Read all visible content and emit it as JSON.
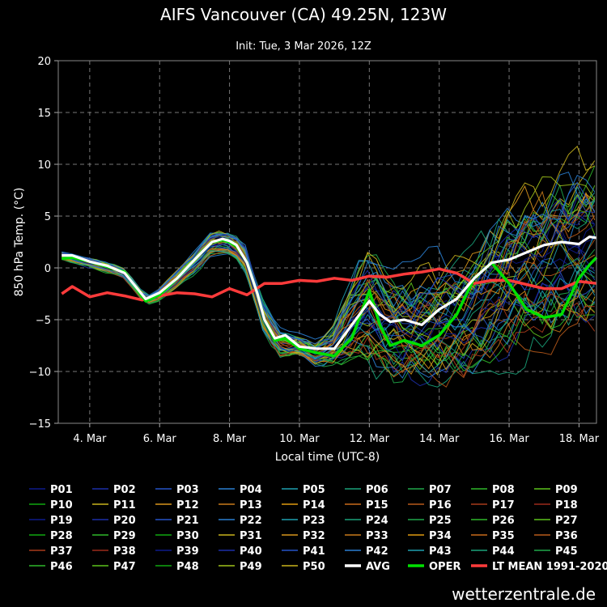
{
  "header": {
    "title": "AIFS Vancouver (CA) 49.25N, 123W",
    "subtitle": "Init: Tue, 3 Mar 2026, 12Z"
  },
  "footer": {
    "brand": "wetterzentrale.de"
  },
  "chart_data": {
    "type": "line",
    "xlabel": "Local time (UTC-8)",
    "ylabel": "850 hPa Temp. (°C)",
    "xunit": "days since 3 Mar 2026 00:00 local",
    "xlim": [
      0.1,
      15.5
    ],
    "ylim": [
      -15,
      20
    ],
    "yticks": [
      -15,
      -10,
      -5,
      0,
      5,
      10,
      15,
      20
    ],
    "xticks": [
      {
        "x": 1,
        "label": "4. Mar"
      },
      {
        "x": 3,
        "label": "6. Mar"
      },
      {
        "x": 5,
        "label": "8. Mar"
      },
      {
        "x": 7,
        "label": "10. Mar"
      },
      {
        "x": 9,
        "label": "12. Mar"
      },
      {
        "x": 11,
        "label": "14. Mar"
      },
      {
        "x": 13,
        "label": "16. Mar"
      },
      {
        "x": 15,
        "label": "18. Mar"
      }
    ],
    "grid": true,
    "legend_position": "bottom",
    "ensemble_colors": [
      "#0d1a8a",
      "#1c2fa8",
      "#2554c7",
      "#2a7fd1",
      "#1f9fb0",
      "#1aa37a",
      "#20a84a",
      "#2fb82a",
      "#5cc21c",
      "#9fc21a",
      "#c9b41c",
      "#d8961c",
      "#c97a1a",
      "#b85a1a",
      "#a83a1a"
    ],
    "ensemble_count": 50,
    "ensemble_key_times": [
      0.2,
      1,
      2,
      2.6,
      3,
      4,
      4.5,
      5,
      5.4,
      6,
      6.5,
      7,
      7.5,
      8,
      8.5,
      9,
      9.5,
      10,
      11,
      12,
      13,
      14,
      15,
      15.5
    ],
    "ensemble_mean_profile": [
      1.2,
      0.5,
      -0.5,
      -3.2,
      -2.5,
      0.5,
      2.5,
      2.5,
      1.5,
      -5,
      -7.5,
      -7.5,
      -8.5,
      -7.5,
      -5,
      -3.5,
      -5,
      -6,
      -5.5,
      -4,
      -1,
      1,
      2.5,
      3
    ],
    "ensemble_spread_profile": [
      0.3,
      0.4,
      0.4,
      0.3,
      0.5,
      0.8,
      0.8,
      0.8,
      1.0,
      1.2,
      1.0,
      0.8,
      1.0,
      1.5,
      3.5,
      4.5,
      4.5,
      4.5,
      4.5,
      4.8,
      5.5,
      6,
      6,
      6.5
    ],
    "series": [
      {
        "name": "AVG",
        "color": "#ffffff",
        "x": [
          0.2,
          0.5,
          1,
          1.5,
          2,
          2.6,
          3,
          3.5,
          4,
          4.5,
          4.8,
          5,
          5.2,
          5.5,
          5.8,
          6,
          6.3,
          6.6,
          7,
          7.5,
          8,
          8.5,
          9,
          9.3,
          9.6,
          10,
          10.5,
          11,
          11.5,
          12,
          12.5,
          13,
          13.5,
          14,
          14.5,
          15,
          15.3,
          15.5
        ],
        "y": [
          1.2,
          1.2,
          0.6,
          0.2,
          -0.5,
          -3.0,
          -2.4,
          -1.0,
          0.8,
          2.5,
          2.8,
          2.6,
          2.2,
          0.5,
          -2.5,
          -5,
          -6.8,
          -6.5,
          -7.6,
          -7.8,
          -7.8,
          -5.5,
          -3.2,
          -4.5,
          -5.2,
          -5.0,
          -5.5,
          -4.0,
          -3.0,
          -1.0,
          0.5,
          0.8,
          1.5,
          2.2,
          2.5,
          2.3,
          3.0,
          2.9
        ]
      },
      {
        "name": "OPER",
        "color": "#00e000",
        "x": [
          0.2,
          0.5,
          1,
          1.5,
          2,
          2.6,
          3,
          3.5,
          4,
          4.5,
          4.8,
          5,
          5.2,
          5.5,
          5.8,
          6,
          6.3,
          6.6,
          7,
          7.5,
          8,
          8.5,
          9,
          9.3,
          9.6,
          10,
          10.5,
          11,
          11.5,
          12,
          12.5,
          13,
          13.5,
          14,
          14.5,
          15,
          15.3,
          15.5
        ],
        "y": [
          0.9,
          1.0,
          0.6,
          0.1,
          -0.4,
          -3.2,
          -2.6,
          -1.0,
          0.8,
          2.5,
          2.7,
          2.5,
          2.1,
          0.5,
          -2.5,
          -5,
          -7.0,
          -6.8,
          -7.8,
          -8.2,
          -8.5,
          -6.8,
          -2.2,
          -5.5,
          -7.5,
          -7.0,
          -7.5,
          -6.5,
          -4.5,
          -1.0,
          0.5,
          -1.5,
          -4.0,
          -4.8,
          -4.5,
          -1.0,
          0.3,
          1.0
        ]
      },
      {
        "name": "LT MEAN 1991-2020",
        "color": "#ff3b3b",
        "x": [
          0.2,
          0.5,
          1,
          1.5,
          2,
          2.5,
          3,
          3.5,
          4,
          4.5,
          5,
          5.5,
          6,
          6.5,
          7,
          7.5,
          8,
          8.5,
          9,
          9.5,
          10,
          10.5,
          11,
          11.5,
          12,
          12.5,
          13,
          13.5,
          14,
          14.5,
          15,
          15.5
        ],
        "y": [
          -2.5,
          -1.8,
          -2.8,
          -2.4,
          -2.7,
          -3.1,
          -2.7,
          -2.4,
          -2.5,
          -2.8,
          -2.0,
          -2.6,
          -1.5,
          -1.5,
          -1.2,
          -1.3,
          -1.0,
          -1.2,
          -0.8,
          -0.9,
          -0.6,
          -0.4,
          -0.1,
          -0.5,
          -1.5,
          -1.2,
          -1.2,
          -1.6,
          -2.0,
          -2.0,
          -1.3,
          -1.5
        ]
      }
    ],
    "legend": [
      {
        "label": "P01",
        "color": "#0d1a8a"
      },
      {
        "label": "P02",
        "color": "#1c2fa8"
      },
      {
        "label": "P03",
        "color": "#2554c7"
      },
      {
        "label": "P04",
        "color": "#2a7fd1"
      },
      {
        "label": "P05",
        "color": "#1f9fb0"
      },
      {
        "label": "P06",
        "color": "#1aa37a"
      },
      {
        "label": "P07",
        "color": "#20a84a"
      },
      {
        "label": "P08",
        "color": "#2fb82a"
      },
      {
        "label": "P09",
        "color": "#5cc21c"
      },
      {
        "label": "P10",
        "color": "#11a811"
      },
      {
        "label": "P11",
        "color": "#c9b41c"
      },
      {
        "label": "P12",
        "color": "#d8961c"
      },
      {
        "label": "P13",
        "color": "#c97a1a"
      },
      {
        "label": "P14",
        "color": "#e09a10"
      },
      {
        "label": "P15",
        "color": "#c96a1a"
      },
      {
        "label": "P16",
        "color": "#b85a1a"
      },
      {
        "label": "P17",
        "color": "#a83a1a"
      },
      {
        "label": "P18",
        "color": "#9c2a1a"
      },
      {
        "label": "P19",
        "color": "#0d1a8a"
      },
      {
        "label": "P20",
        "color": "#1c2fa8"
      },
      {
        "label": "P21",
        "color": "#2554c7"
      },
      {
        "label": "P22",
        "color": "#2a7fd1"
      },
      {
        "label": "P23",
        "color": "#1f9fb0"
      },
      {
        "label": "P24",
        "color": "#1aa37a"
      },
      {
        "label": "P25",
        "color": "#20a84a"
      },
      {
        "label": "P26",
        "color": "#2fb82a"
      },
      {
        "label": "P27",
        "color": "#5cc21c"
      },
      {
        "label": "P28",
        "color": "#11a811"
      },
      {
        "label": "P29",
        "color": "#2fb82a"
      },
      {
        "label": "P30",
        "color": "#11a811"
      },
      {
        "label": "P31",
        "color": "#c9b41c"
      },
      {
        "label": "P32",
        "color": "#d8961c"
      },
      {
        "label": "P33",
        "color": "#c97a1a"
      },
      {
        "label": "P34",
        "color": "#e09a10"
      },
      {
        "label": "P35",
        "color": "#c96a1a"
      },
      {
        "label": "P36",
        "color": "#b85a1a"
      },
      {
        "label": "P37",
        "color": "#a83a1a"
      },
      {
        "label": "P38",
        "color": "#9c2a1a"
      },
      {
        "label": "P39",
        "color": "#0d1a8a"
      },
      {
        "label": "P40",
        "color": "#1c2fa8"
      },
      {
        "label": "P41",
        "color": "#2554c7"
      },
      {
        "label": "P42",
        "color": "#2a7fd1"
      },
      {
        "label": "P43",
        "color": "#1f9fb0"
      },
      {
        "label": "P44",
        "color": "#1aa37a"
      },
      {
        "label": "P45",
        "color": "#20a84a"
      },
      {
        "label": "P46",
        "color": "#2fb82a"
      },
      {
        "label": "P47",
        "color": "#5cc21c"
      },
      {
        "label": "P48",
        "color": "#11a811"
      },
      {
        "label": "P49",
        "color": "#9fc21a"
      },
      {
        "label": "P50",
        "color": "#c9b41c"
      },
      {
        "label": "AVG",
        "color": "#ffffff",
        "thick": true
      },
      {
        "label": "OPER",
        "color": "#00e000",
        "thick": true
      },
      {
        "label": "LT MEAN 1991-2020",
        "color": "#ff3b3b",
        "thick": true
      }
    ]
  }
}
